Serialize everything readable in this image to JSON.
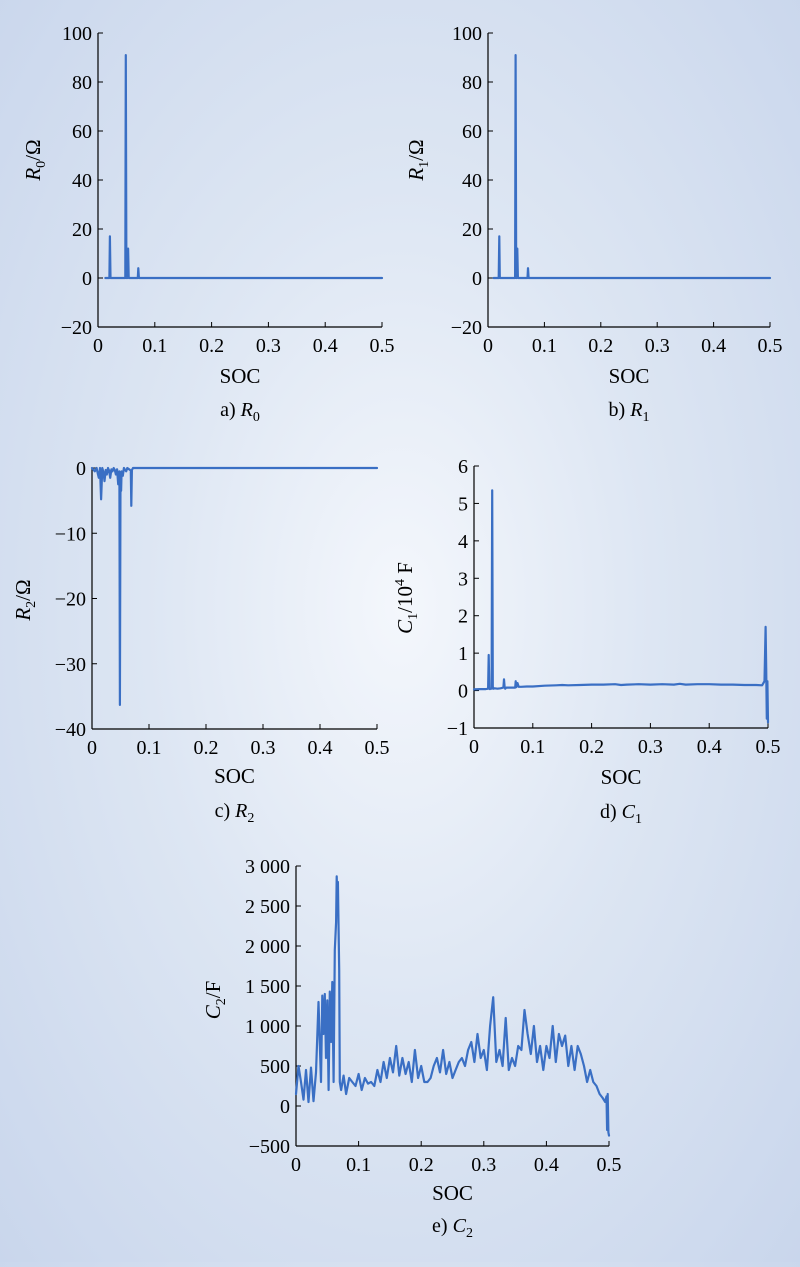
{
  "chart_data": [
    {
      "id": "a",
      "type": "line",
      "caption": {
        "prefix": "a) ",
        "sym": "R",
        "sub": "0",
        "sup": ""
      },
      "xlabel": "SOC",
      "ylabel": {
        "sym": "R",
        "sub": "0",
        "sup": "",
        "unit": "/Ω"
      },
      "xlim": [
        0,
        0.5
      ],
      "ylim": [
        -20,
        100
      ],
      "xticks": [
        0,
        0.1,
        0.2,
        0.3,
        0.4,
        0.5
      ],
      "xtick_labels": [
        "0",
        "0.1",
        "0.2",
        "0.3",
        "0.4",
        "0.5"
      ],
      "yticks": [
        -20,
        0,
        20,
        40,
        60,
        80,
        100
      ],
      "ytick_labels": [
        "−20",
        "0",
        "20",
        "40",
        "60",
        "80",
        "100"
      ],
      "color": "#3a6fc4",
      "x": [
        0.013,
        0.02,
        0.021,
        0.022,
        0.023,
        0.03,
        0.04,
        0.048,
        0.049,
        0.05,
        0.051,
        0.052,
        0.053,
        0.054,
        0.055,
        0.056,
        0.06,
        0.07,
        0.071,
        0.072,
        0.08,
        0.1,
        0.2,
        0.3,
        0.4,
        0.5
      ],
      "y": [
        0,
        0,
        17,
        0,
        0,
        0,
        0,
        0,
        91,
        0,
        0,
        0,
        12,
        0,
        0,
        0,
        0,
        0,
        4,
        0,
        0,
        0,
        0,
        0,
        0,
        0
      ]
    },
    {
      "id": "b",
      "type": "line",
      "caption": {
        "prefix": "b) ",
        "sym": "R",
        "sub": "1",
        "sup": ""
      },
      "xlabel": "SOC",
      "ylabel": {
        "sym": "R",
        "sub": "1",
        "sup": "",
        "unit": "/Ω"
      },
      "xlim": [
        0,
        0.5
      ],
      "ylim": [
        -20,
        100
      ],
      "xticks": [
        0,
        0.1,
        0.2,
        0.3,
        0.4,
        0.5
      ],
      "xtick_labels": [
        "0",
        "0.1",
        "0.2",
        "0.3",
        "0.4",
        "0.5"
      ],
      "yticks": [
        -20,
        0,
        20,
        40,
        60,
        80,
        100
      ],
      "ytick_labels": [
        "−20",
        "0",
        "20",
        "40",
        "60",
        "80",
        "100"
      ],
      "color": "#3a6fc4",
      "x": [
        0.01,
        0.019,
        0.02,
        0.021,
        0.022,
        0.03,
        0.04,
        0.048,
        0.049,
        0.05,
        0.051,
        0.052,
        0.053,
        0.054,
        0.055,
        0.06,
        0.07,
        0.071,
        0.072,
        0.08,
        0.1,
        0.2,
        0.3,
        0.4,
        0.5
      ],
      "y": [
        0,
        0,
        17,
        0,
        0,
        0,
        0,
        0,
        91,
        0,
        0,
        12,
        0,
        0,
        0,
        0,
        0,
        4,
        0,
        0,
        0,
        0,
        0,
        0,
        0
      ]
    },
    {
      "id": "c",
      "type": "line",
      "caption": {
        "prefix": "c) ",
        "sym": "R",
        "sub": "2",
        "sup": ""
      },
      "xlabel": "SOC",
      "ylabel": {
        "sym": "R",
        "sub": "2",
        "sup": "",
        "unit": "/Ω"
      },
      "xlim": [
        0,
        0.5
      ],
      "ylim": [
        -40,
        0
      ],
      "xticks": [
        0,
        0.1,
        0.2,
        0.3,
        0.4,
        0.5
      ],
      "xtick_labels": [
        "0",
        "0.1",
        "0.2",
        "0.3",
        "0.4",
        "0.5"
      ],
      "yticks": [
        -40,
        -30,
        -20,
        -10,
        0
      ],
      "ytick_labels": [
        "−40",
        "−30",
        "−20",
        "−10",
        "0"
      ],
      "color": "#3a6fc4",
      "x": [
        0.0,
        0.005,
        0.008,
        0.01,
        0.012,
        0.014,
        0.016,
        0.018,
        0.02,
        0.022,
        0.024,
        0.026,
        0.028,
        0.03,
        0.032,
        0.034,
        0.036,
        0.038,
        0.04,
        0.042,
        0.044,
        0.046,
        0.048,
        0.049,
        0.05,
        0.051,
        0.052,
        0.054,
        0.056,
        0.058,
        0.06,
        0.062,
        0.065,
        0.068,
        0.069,
        0.07,
        0.072,
        0.08,
        0.1,
        0.2,
        0.3,
        0.4,
        0.5
      ],
      "y": [
        0,
        -0.5,
        0,
        -0.8,
        -1.5,
        0,
        -4.8,
        0,
        -0.6,
        -2.0,
        -0.3,
        -1.0,
        0,
        -0.4,
        -1.5,
        -0.2,
        -0.5,
        0,
        -0.3,
        -1.0,
        -0.2,
        -2.5,
        -0.5,
        -36.3,
        -0.8,
        -3.5,
        -0.5,
        -1.2,
        0,
        -0.3,
        -0.5,
        0,
        -0.2,
        -0.4,
        -5.8,
        -0.3,
        0,
        0,
        0,
        0,
        0,
        0,
        0
      ]
    },
    {
      "id": "d",
      "type": "line",
      "caption": {
        "prefix": "d) ",
        "sym": "C",
        "sub": "1",
        "sup": ""
      },
      "xlabel": "SOC",
      "ylabel": {
        "sym": "C",
        "sub": "1",
        "sup": "4",
        "unit_pre": "/10",
        "unit_post": " F"
      },
      "xlim": [
        0,
        0.5
      ],
      "ylim": [
        -1,
        6
      ],
      "xticks": [
        0,
        0.1,
        0.2,
        0.3,
        0.4,
        0.5
      ],
      "xtick_labels": [
        "0",
        "0.1",
        "0.2",
        "0.3",
        "0.4",
        "0.5"
      ],
      "yticks": [
        -1,
        0,
        1,
        2,
        3,
        4,
        5,
        6
      ],
      "ytick_labels": [
        "−1",
        "0",
        "1",
        "2",
        "3",
        "4",
        "5",
        "6"
      ],
      "color": "#3a6fc4",
      "x": [
        0.0,
        0.01,
        0.02,
        0.024,
        0.025,
        0.026,
        0.027,
        0.028,
        0.03,
        0.031,
        0.032,
        0.033,
        0.035,
        0.04,
        0.045,
        0.05,
        0.051,
        0.052,
        0.053,
        0.055,
        0.06,
        0.07,
        0.071,
        0.072,
        0.074,
        0.076,
        0.08,
        0.09,
        0.1,
        0.12,
        0.14,
        0.15,
        0.16,
        0.18,
        0.2,
        0.22,
        0.24,
        0.25,
        0.26,
        0.28,
        0.3,
        0.32,
        0.34,
        0.35,
        0.36,
        0.38,
        0.4,
        0.42,
        0.44,
        0.46,
        0.48,
        0.49,
        0.494,
        0.496,
        0.497,
        0.498,
        0.499,
        0.5
      ],
      "y": [
        0.03,
        0.04,
        0.04,
        0.05,
        0.95,
        0.05,
        0.04,
        0.05,
        0.05,
        5.35,
        0.1,
        0.05,
        0.06,
        0.05,
        0.06,
        0.08,
        0.3,
        0.1,
        0.05,
        0.08,
        0.08,
        0.08,
        0.25,
        0.09,
        0.2,
        0.1,
        0.1,
        0.11,
        0.11,
        0.13,
        0.14,
        0.15,
        0.14,
        0.15,
        0.16,
        0.16,
        0.17,
        0.15,
        0.16,
        0.17,
        0.16,
        0.17,
        0.16,
        0.18,
        0.16,
        0.17,
        0.17,
        0.16,
        0.16,
        0.15,
        0.15,
        0.14,
        0.25,
        1.7,
        0.6,
        -0.75,
        0.25,
        -0.85
      ]
    },
    {
      "id": "e",
      "type": "line",
      "caption": {
        "prefix": "e) ",
        "sym": "C",
        "sub": "2",
        "sup": ""
      },
      "xlabel": "SOC",
      "ylabel": {
        "sym": "C",
        "sub": "2",
        "sup": "",
        "unit": "/F"
      },
      "xlim": [
        0,
        0.5
      ],
      "ylim": [
        -500,
        3000
      ],
      "xticks": [
        0,
        0.1,
        0.2,
        0.3,
        0.4,
        0.5
      ],
      "xtick_labels": [
        "0",
        "0.1",
        "0.2",
        "0.3",
        "0.4",
        "0.5"
      ],
      "yticks": [
        -500,
        0,
        500,
        1000,
        1500,
        2000,
        2500,
        3000
      ],
      "ytick_labels": [
        "−500",
        "0",
        "500",
        "1 000",
        "1 500",
        "2 000",
        "2 500",
        "3 000"
      ],
      "color": "#3a6fc4",
      "x": [
        0.0,
        0.004,
        0.008,
        0.012,
        0.016,
        0.02,
        0.024,
        0.028,
        0.032,
        0.036,
        0.04,
        0.042,
        0.044,
        0.046,
        0.048,
        0.05,
        0.052,
        0.054,
        0.056,
        0.058,
        0.06,
        0.062,
        0.064,
        0.065,
        0.066,
        0.067,
        0.068,
        0.069,
        0.07,
        0.072,
        0.076,
        0.08,
        0.085,
        0.09,
        0.095,
        0.1,
        0.105,
        0.11,
        0.115,
        0.12,
        0.125,
        0.13,
        0.135,
        0.14,
        0.145,
        0.15,
        0.155,
        0.16,
        0.165,
        0.17,
        0.175,
        0.18,
        0.185,
        0.19,
        0.195,
        0.2,
        0.205,
        0.21,
        0.215,
        0.22,
        0.225,
        0.23,
        0.235,
        0.24,
        0.245,
        0.25,
        0.255,
        0.26,
        0.265,
        0.27,
        0.275,
        0.28,
        0.285,
        0.29,
        0.295,
        0.3,
        0.305,
        0.31,
        0.315,
        0.32,
        0.325,
        0.33,
        0.335,
        0.34,
        0.345,
        0.35,
        0.355,
        0.36,
        0.365,
        0.37,
        0.375,
        0.38,
        0.385,
        0.39,
        0.395,
        0.4,
        0.405,
        0.41,
        0.415,
        0.42,
        0.425,
        0.43,
        0.435,
        0.44,
        0.445,
        0.45,
        0.455,
        0.46,
        0.465,
        0.47,
        0.475,
        0.48,
        0.485,
        0.49,
        0.494,
        0.496,
        0.497,
        0.498,
        0.499,
        0.5
      ],
      "y": [
        150,
        500,
        300,
        80,
        450,
        50,
        480,
        60,
        420,
        1300,
        300,
        1380,
        900,
        1400,
        600,
        1320,
        200,
        1430,
        800,
        1550,
        300,
        1950,
        2300,
        2870,
        2600,
        2800,
        2200,
        1700,
        300,
        200,
        380,
        150,
        350,
        300,
        250,
        400,
        200,
        350,
        280,
        300,
        250,
        450,
        300,
        550,
        350,
        600,
        420,
        750,
        380,
        600,
        400,
        550,
        300,
        700,
        350,
        500,
        300,
        300,
        350,
        500,
        600,
        420,
        700,
        400,
        550,
        350,
        450,
        550,
        600,
        500,
        700,
        800,
        550,
        900,
        600,
        700,
        450,
        1000,
        1360,
        550,
        700,
        500,
        1100,
        450,
        600,
        500,
        750,
        700,
        1200,
        900,
        650,
        1000,
        550,
        750,
        450,
        750,
        600,
        1000,
        550,
        900,
        750,
        880,
        500,
        750,
        450,
        750,
        650,
        500,
        300,
        450,
        300,
        250,
        150,
        100,
        50,
        120,
        -300,
        150,
        -330,
        -370
      ]
    }
  ]
}
